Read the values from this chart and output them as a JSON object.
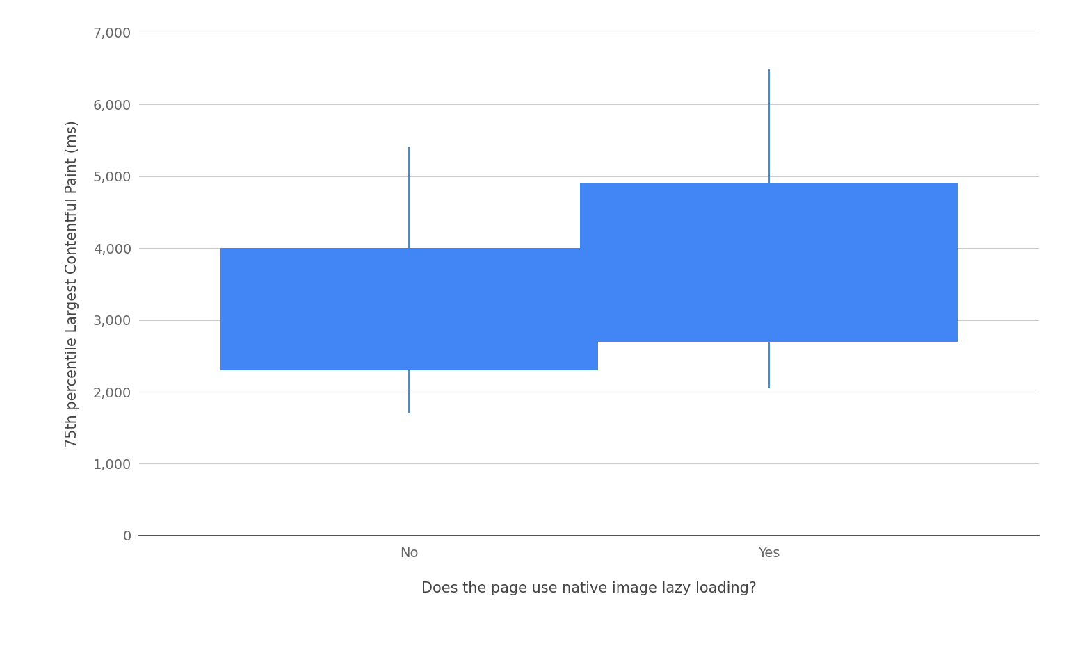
{
  "categories": [
    "No",
    "Yes"
  ],
  "boxes": [
    {
      "p10": 1700,
      "p25": 2300,
      "p75": 4000,
      "p90": 5400
    },
    {
      "p10": 2050,
      "p25": 2700,
      "p75": 4900,
      "p90": 6500
    }
  ],
  "box_color": "#4285F4",
  "whisker_color": "#4285F4",
  "whisker_linewidth": 1.5,
  "box_width": 0.42,
  "ylabel": "75th percentile Largest Contentful Paint (ms)",
  "xlabel": "Does the page use native image lazy loading?",
  "ylim": [
    0,
    7000
  ],
  "yticks": [
    0,
    1000,
    2000,
    3000,
    4000,
    5000,
    6000,
    7000
  ],
  "ytick_labels": [
    "0",
    "1,000",
    "2,000",
    "3,000",
    "4,000",
    "5,000",
    "6,000",
    "7,000"
  ],
  "background_color": "#ffffff",
  "grid_color": "#cccccc",
  "label_fontsize": 15,
  "tick_fontsize": 14,
  "x_positions": [
    0.3,
    0.7
  ],
  "xlim": [
    0.0,
    1.0
  ]
}
